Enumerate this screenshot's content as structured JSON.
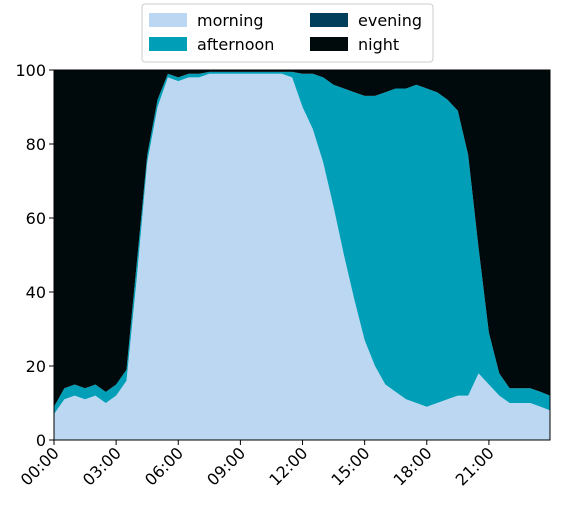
{
  "chart_data": {
    "type": "area",
    "stacked": true,
    "title": "",
    "xlabel": "",
    "ylabel": "",
    "ylim": [
      0,
      100
    ],
    "xlim": [
      0,
      23.95
    ],
    "x_ticks": [
      0,
      3,
      6,
      9,
      12,
      15,
      18,
      21
    ],
    "x_tick_labels": [
      "00:00",
      "03:00",
      "06:00",
      "09:00",
      "12:00",
      "15:00",
      "18:00",
      "21:00"
    ],
    "y_ticks": [
      0,
      20,
      40,
      60,
      80,
      100
    ],
    "y_tick_labels": [
      "0",
      "20",
      "40",
      "60",
      "80",
      "100"
    ],
    "grid": false,
    "legend": {
      "placement": "top-center",
      "columns": 2
    },
    "x": [
      0,
      0.5,
      1,
      1.5,
      2,
      2.5,
      3,
      3.5,
      4,
      4.5,
      5,
      5.5,
      6,
      6.5,
      7,
      7.5,
      8,
      8.5,
      9,
      9.5,
      10,
      10.5,
      11,
      11.5,
      12,
      12.5,
      13,
      13.5,
      14,
      14.5,
      15,
      15.5,
      16,
      16.5,
      17,
      17.5,
      18,
      18.5,
      19,
      19.5,
      20,
      20.5,
      21,
      21.5,
      22,
      22.5,
      23,
      23.5,
      23.95
    ],
    "series": [
      {
        "name": "morning",
        "color": "#bcd7f1",
        "values": [
          7,
          11,
          12,
          11,
          12,
          10,
          12,
          16,
          44,
          75,
          90,
          98,
          97,
          98,
          98,
          99,
          99,
          99,
          99,
          99,
          99,
          99,
          99,
          98,
          90,
          84,
          75,
          63,
          50,
          38,
          27,
          20,
          15,
          13,
          11,
          10,
          9,
          10,
          11,
          12,
          12,
          18,
          15,
          12,
          10,
          10,
          10,
          9,
          8
        ]
      },
      {
        "name": "afternoon",
        "color": "#009fb7",
        "values": [
          2,
          3,
          3,
          3,
          3,
          3,
          3,
          3,
          4,
          2,
          2,
          1,
          1,
          1,
          1,
          0.5,
          0.5,
          0.5,
          0.5,
          0.5,
          0.5,
          0.5,
          0.5,
          1.5,
          9,
          15,
          23,
          33,
          45,
          56,
          66,
          73,
          79,
          82,
          84,
          86,
          86,
          84,
          81,
          77,
          65,
          34,
          14,
          6,
          4,
          4,
          4,
          4,
          4
        ]
      },
      {
        "name": "evening",
        "color": "#003f5c",
        "values": [
          0,
          0,
          0,
          0,
          0,
          0,
          0,
          0,
          0,
          0,
          0,
          0,
          0,
          0,
          0,
          0,
          0,
          0,
          0,
          0,
          0,
          0,
          0,
          0,
          0,
          0,
          0,
          0,
          0,
          0,
          0,
          0,
          0,
          0,
          0,
          0,
          0,
          0,
          0,
          0,
          0,
          0,
          0,
          0,
          0,
          0,
          0,
          0,
          0
        ]
      },
      {
        "name": "night",
        "color": "#000a0d",
        "values": [
          91,
          86,
          85,
          86,
          85,
          87,
          85,
          81,
          52,
          23,
          8,
          1,
          2,
          1,
          1,
          0.5,
          0.5,
          0.5,
          0.5,
          0.5,
          0.5,
          0.5,
          0.5,
          0.5,
          1,
          1,
          2,
          4,
          5,
          6,
          7,
          7,
          6,
          5,
          5,
          4,
          5,
          6,
          8,
          11,
          23,
          48,
          71,
          82,
          86,
          86,
          86,
          87,
          88
        ]
      }
    ]
  }
}
